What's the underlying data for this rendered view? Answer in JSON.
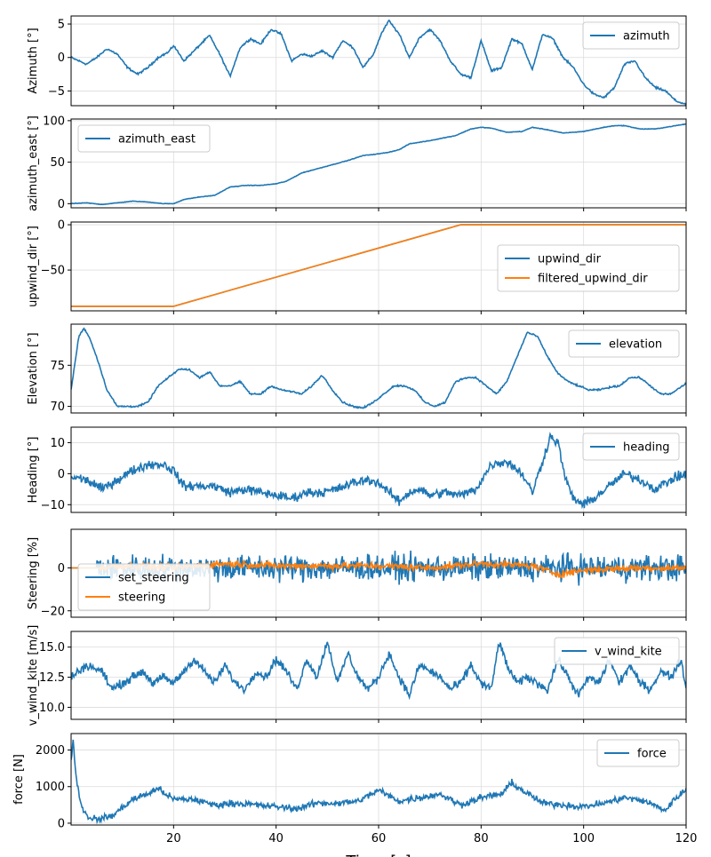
{
  "chart_data": {
    "type": "line",
    "xlabel": "Time [s]",
    "xlim": [
      0,
      120
    ],
    "xticks": [
      20,
      40,
      60,
      80,
      100,
      120
    ],
    "colors": {
      "blue": "#1f77b4",
      "orange": "#ff7f0e"
    },
    "grid": true,
    "panels": [
      {
        "ylabel": "Azimuth [°]",
        "ylim": [
          -7.2,
          6.2
        ],
        "yticks": [
          -5,
          0,
          5
        ],
        "legend_position": "upper-right",
        "series": [
          {
            "name": "azimuth",
            "color": "#1f77b4",
            "noise": 0.15,
            "x": [
              0,
              3,
              5,
              7,
              9,
              11,
              13,
              15,
              17,
              19,
              20,
              22,
              24,
              27,
              29,
              31,
              33,
              35,
              37,
              39,
              41,
              43,
              45,
              47,
              49,
              51,
              53,
              55,
              57,
              59,
              60.5,
              62,
              64,
              66,
              68,
              70,
              72,
              74,
              76,
              78,
              80,
              82,
              84,
              86,
              88,
              90,
              92,
              94,
              96,
              98,
              100,
              102,
              104,
              106,
              108,
              110,
              112,
              114,
              116,
              118,
              120
            ],
            "y": [
              0,
              -1,
              0,
              1.3,
              0.5,
              -1.5,
              -2.5,
              -1.5,
              0,
              0.8,
              1.8,
              -0.5,
              1,
              3.3,
              0.5,
              -2.8,
              1.5,
              2.8,
              2,
              4.2,
              3.5,
              -0.5,
              0.5,
              0.2,
              1,
              0,
              2.5,
              1.5,
              -1.5,
              0.5,
              3.5,
              5.5,
              3.5,
              0,
              3,
              4.2,
              2.5,
              -0.5,
              -2.5,
              -3,
              2.5,
              -2,
              -1.5,
              2.8,
              2,
              -1.8,
              3.5,
              2.8,
              0,
              -1.5,
              -4,
              -5.5,
              -6,
              -4.5,
              -1,
              -0.5,
              -3,
              -4.5,
              -5,
              -6.5,
              -7
            ]
          }
        ]
      },
      {
        "ylabel": "azimuth_east [°]",
        "ylim": [
          -5,
          102
        ],
        "yticks": [
          0,
          50,
          100
        ],
        "legend_position": "upper-left",
        "series": [
          {
            "name": "azimuth_east",
            "color": "#1f77b4",
            "noise": 0.3,
            "x": [
              0,
              3,
              6,
              9,
              12,
              15,
              18,
              20,
              22,
              25,
              28,
              31,
              34,
              37,
              40,
              42,
              45,
              48,
              51,
              54,
              57,
              60,
              62,
              64,
              66,
              70,
              75,
              78,
              80,
              82,
              85,
              88,
              90,
              93,
              96,
              100,
              104,
              106,
              108,
              111,
              114,
              117,
              120
            ],
            "y": [
              0,
              1,
              -1,
              1,
              3,
              2,
              0,
              0,
              5,
              8,
              10,
              20,
              22,
              22,
              24,
              27,
              37,
              42,
              47,
              52,
              58,
              60,
              62,
              65,
              72,
              76,
              82,
              90,
              92,
              91,
              86,
              87,
              92,
              89,
              85,
              87,
              92,
              94,
              94,
              90,
              90,
              93,
              96
            ]
          }
        ]
      },
      {
        "ylabel": "upwind_dir [°]",
        "ylim": [
          -95,
          3
        ],
        "yticks": [
          -50,
          0
        ],
        "legend_position": "center-right",
        "series": [
          {
            "name": "upwind_dir",
            "color": "#1f77b4",
            "noise": 0,
            "x": [
              0,
              20,
              76,
              120
            ],
            "y": [
              -90,
              -90,
              0,
              0
            ]
          },
          {
            "name": "filtered_upwind_dir",
            "color": "#ff7f0e",
            "noise": 0,
            "x": [
              0,
              20,
              76,
              120
            ],
            "y": [
              -90,
              -90,
              0,
              0
            ]
          }
        ]
      },
      {
        "ylabel": "Elevation [°]",
        "ylim": [
          69.2,
          80
        ],
        "yticks": [
          70,
          75
        ],
        "legend_position": "upper-right",
        "series": [
          {
            "name": "elevation",
            "color": "#1f77b4",
            "noise": 0.1,
            "x": [
              0,
              1.5,
              2.5,
              3.5,
              5,
              7,
              9,
              11,
              13,
              15,
              17,
              19,
              21,
              23,
              25,
              27,
              29,
              31,
              33,
              35,
              37,
              39,
              41,
              43,
              45,
              47,
              49,
              51,
              53,
              55,
              57,
              59,
              61,
              63,
              65,
              67,
              69,
              71,
              73,
              75,
              77,
              79,
              81,
              83,
              85,
              87,
              89,
              91,
              93,
              95,
              97,
              99,
              101,
              103,
              105,
              107,
              109,
              111,
              113,
              115,
              117,
              120
            ],
            "y": [
              72,
              78.5,
              79.5,
              78.5,
              76,
              72,
              70,
              70,
              70,
              70.5,
              72.5,
              73.5,
              74.5,
              74.5,
              73.5,
              74.2,
              72.5,
              72.5,
              73,
              71.5,
              71.5,
              72.5,
              72,
              71.8,
              71.5,
              72.5,
              73.8,
              72,
              70.5,
              70,
              69.8,
              70.5,
              71.5,
              72.5,
              72.5,
              72,
              70.5,
              70,
              70.5,
              73,
              73.5,
              73.5,
              72.5,
              71.5,
              73,
              76,
              79,
              78.5,
              76,
              74,
              73,
              72.5,
              72,
              72,
              72.3,
              72.5,
              73.5,
              73.5,
              72.5,
              71.5,
              71.5,
              72.8
            ]
          }
        ]
      },
      {
        "ylabel": "Heading [°]",
        "ylim": [
          -12.5,
          15
        ],
        "yticks": [
          -10,
          0,
          10
        ],
        "legend_position": "upper-right",
        "series": [
          {
            "name": "heading",
            "color": "#1f77b4",
            "noise": 1.5,
            "x": [
              0,
              3,
              6,
              9,
              12,
              15,
              18,
              20,
              22,
              25,
              28,
              31,
              34,
              37,
              40,
              43,
              46,
              49,
              52,
              55,
              58,
              60,
              62,
              64,
              66,
              68,
              70,
              73,
              76,
              79,
              82,
              85,
              88,
              90,
              92,
              93.5,
              95,
              96.5,
              98,
              100,
              102,
              105,
              108,
              111,
              114,
              117,
              120
            ],
            "y": [
              -1,
              -2,
              -5,
              -2,
              1,
              3,
              3,
              1,
              -4,
              -4,
              -4,
              -6,
              -5,
              -6,
              -7,
              -8,
              -6,
              -6,
              -5,
              -3,
              -2,
              -3,
              -6,
              -9,
              -6,
              -5,
              -7,
              -6,
              -7,
              -5,
              3,
              4,
              0,
              -6,
              4,
              12,
              10,
              -2,
              -8,
              -10,
              -8,
              -4,
              0,
              -2,
              -5,
              -2,
              0
            ]
          }
        ]
      },
      {
        "ylabel": "Steering [%]",
        "ylim": [
          -23,
          18
        ],
        "yticks": [
          -20,
          0
        ],
        "legend_position": "lower-left",
        "series": [
          {
            "name": "set_steering",
            "color": "#1f77b4",
            "noise": 6,
            "x": [
              0,
              4.9,
              5,
              6,
              120
            ],
            "y": [
              0,
              0,
              0,
              0,
              0
            ]
          },
          {
            "name": "steering",
            "color": "#ff7f0e",
            "noise": 1.6,
            "x": [
              0,
              4.9,
              5,
              10,
              20,
              30,
              40,
              50,
              60,
              70,
              80,
              90,
              95,
              100,
              110,
              120
            ],
            "y": [
              0,
              0,
              0,
              1,
              0,
              2,
              1,
              1,
              1,
              0,
              2,
              1,
              -3,
              -1,
              0,
              0
            ]
          }
        ]
      },
      {
        "ylabel": "v_wind_kite [m/s]",
        "ylim": [
          9,
          16.3
        ],
        "yticks": [
          10.0,
          12.5,
          15.0
        ],
        "legend_position": "upper-right",
        "series": [
          {
            "name": "v_wind_kite",
            "color": "#1f77b4",
            "noise": 0.35,
            "x": [
              0,
              3,
              6,
              8,
              10,
              12,
              14,
              16,
              18,
              20,
              22,
              24,
              26,
              28,
              30,
              32,
              34,
              36,
              38,
              40,
              42,
              44,
              46,
              48,
              50,
              52,
              54,
              56,
              58,
              60,
              62,
              64,
              66,
              68,
              70,
              72,
              74,
              76,
              78,
              80,
              82,
              83.5,
              85,
              87,
              89,
              91,
              93,
              95,
              97,
              99,
              101,
              103,
              105,
              107,
              109,
              111,
              113,
              115,
              117,
              119,
              120
            ],
            "y": [
              12.5,
              13.5,
              13,
              11.5,
              12,
              12.5,
              13,
              12,
              12.5,
              12,
              13,
              14,
              13,
              12,
              13.5,
              12,
              11.5,
              13,
              12.5,
              14,
              13,
              11.5,
              14,
              12.5,
              15.5,
              12,
              14.5,
              12.5,
              11.5,
              12.5,
              14.5,
              12.5,
              11,
              13.5,
              13,
              12.5,
              11.5,
              12,
              13.5,
              12,
              11.5,
              15.5,
              13.5,
              12,
              12.5,
              12,
              11.5,
              14,
              12.5,
              11,
              12.5,
              12,
              14,
              12,
              13.5,
              12,
              11.5,
              13,
              12.5,
              14,
              11.5
            ]
          }
        ]
      },
      {
        "ylabel": "force [N]",
        "ylim": [
          -50,
          2450
        ],
        "yticks": [
          0,
          1000,
          2000
        ],
        "legend_position": "upper-right",
        "series": [
          {
            "name": "force",
            "color": "#1f77b4",
            "noise": 90,
            "x": [
              0,
              0.4,
              1,
              2,
              3,
              5,
              8,
              12,
              15,
              17,
              20,
              24,
              28,
              32,
              36,
              40,
              44,
              48,
              52,
              56,
              60,
              64,
              68,
              72,
              76,
              80,
              84,
              86,
              88,
              92,
              96,
              100,
              104,
              108,
              112,
              116,
              118,
              120
            ],
            "y": [
              1700,
              2300,
              1200,
              500,
              200,
              100,
              200,
              650,
              800,
              950,
              650,
              650,
              500,
              550,
              500,
              450,
              400,
              550,
              550,
              600,
              900,
              600,
              700,
              800,
              500,
              700,
              800,
              1100,
              900,
              550,
              500,
              450,
              550,
              700,
              600,
              350,
              700,
              900
            ]
          }
        ]
      }
    ]
  }
}
